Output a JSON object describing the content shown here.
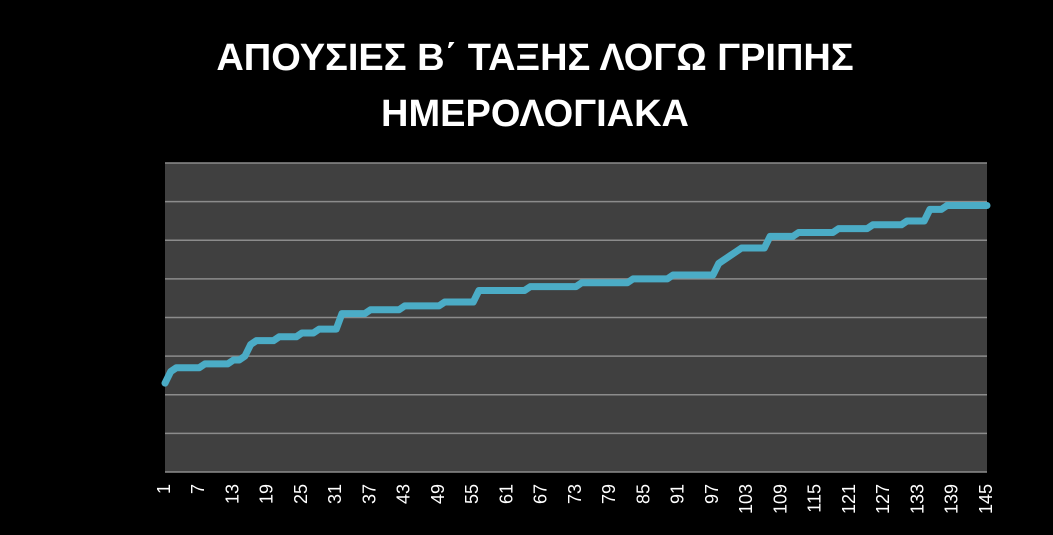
{
  "chart_data": {
    "type": "line",
    "title": [
      "ΑΠΟΥΣΙΕΣ Β΄ ΤΑΞΗΣ ΛΟΓΩ ΓΡΙΠΗΣ",
      "ΗΜΕΡΟΛΟΓΙΑΚΑ"
    ],
    "categories": [
      "1",
      null,
      null,
      null,
      null,
      null,
      "7",
      null,
      null,
      null,
      null,
      null,
      "13",
      null,
      null,
      null,
      null,
      null,
      "19",
      null,
      null,
      null,
      null,
      null,
      "25",
      null,
      null,
      null,
      null,
      null,
      "31",
      null,
      null,
      null,
      null,
      null,
      "37",
      null,
      null,
      null,
      null,
      null,
      "43",
      null,
      null,
      null,
      null,
      null,
      "49",
      null,
      null,
      null,
      null,
      null,
      "55",
      null,
      null,
      null,
      null,
      null,
      "61",
      null,
      null,
      null,
      null,
      null,
      "67",
      null,
      null,
      null,
      null,
      null,
      "73",
      null,
      null,
      null,
      null,
      null,
      "79",
      null,
      null,
      null,
      null,
      null,
      "85",
      null,
      null,
      null,
      null,
      null,
      "91",
      null,
      null,
      null,
      null,
      null,
      "97",
      null,
      null,
      null,
      null,
      null,
      "103",
      null,
      null,
      null,
      null,
      null,
      "109",
      null,
      null,
      null,
      null,
      null,
      "115",
      null,
      null,
      null,
      null,
      null,
      "121",
      null,
      null,
      null,
      null,
      null,
      "127",
      null,
      null,
      null,
      null,
      null,
      "133",
      null,
      null,
      null,
      null,
      null,
      "139",
      null,
      null,
      null,
      null,
      null,
      "145"
    ],
    "series": [
      {
        "color": "#4bacc6",
        "values": [
          2.3,
          2.6,
          2.7,
          2.7,
          2.7,
          2.7,
          2.7,
          2.8,
          2.8,
          2.8,
          2.8,
          2.8,
          2.9,
          2.9,
          3.0,
          3.3,
          3.4,
          3.4,
          3.4,
          3.4,
          3.5,
          3.5,
          3.5,
          3.5,
          3.6,
          3.6,
          3.6,
          3.7,
          3.7,
          3.7,
          3.7,
          4.1,
          4.1,
          4.1,
          4.1,
          4.1,
          4.2,
          4.2,
          4.2,
          4.2,
          4.2,
          4.2,
          4.3,
          4.3,
          4.3,
          4.3,
          4.3,
          4.3,
          4.3,
          4.4,
          4.4,
          4.4,
          4.4,
          4.4,
          4.4,
          4.7,
          4.7,
          4.7,
          4.7,
          4.7,
          4.7,
          4.7,
          4.7,
          4.7,
          4.8,
          4.8,
          4.8,
          4.8,
          4.8,
          4.8,
          4.8,
          4.8,
          4.8,
          4.9,
          4.9,
          4.9,
          4.9,
          4.9,
          4.9,
          4.9,
          4.9,
          4.9,
          5.0,
          5.0,
          5.0,
          5.0,
          5.0,
          5.0,
          5.0,
          5.1,
          5.1,
          5.1,
          5.1,
          5.1,
          5.1,
          5.1,
          5.1,
          5.4,
          5.5,
          5.6,
          5.7,
          5.8,
          5.8,
          5.8,
          5.8,
          5.8,
          6.1,
          6.1,
          6.1,
          6.1,
          6.1,
          6.2,
          6.2,
          6.2,
          6.2,
          6.2,
          6.2,
          6.2,
          6.3,
          6.3,
          6.3,
          6.3,
          6.3,
          6.3,
          6.4,
          6.4,
          6.4,
          6.4,
          6.4,
          6.4,
          6.5,
          6.5,
          6.5,
          6.5,
          6.8,
          6.8,
          6.8,
          6.9,
          6.9,
          6.9,
          6.9,
          6.9,
          6.9,
          6.9,
          6.9
        ]
      }
    ],
    "ylim": [
      0,
      8
    ],
    "yticks": [
      0,
      1,
      2,
      3,
      4,
      5,
      6,
      7,
      8
    ],
    "grid": true
  }
}
